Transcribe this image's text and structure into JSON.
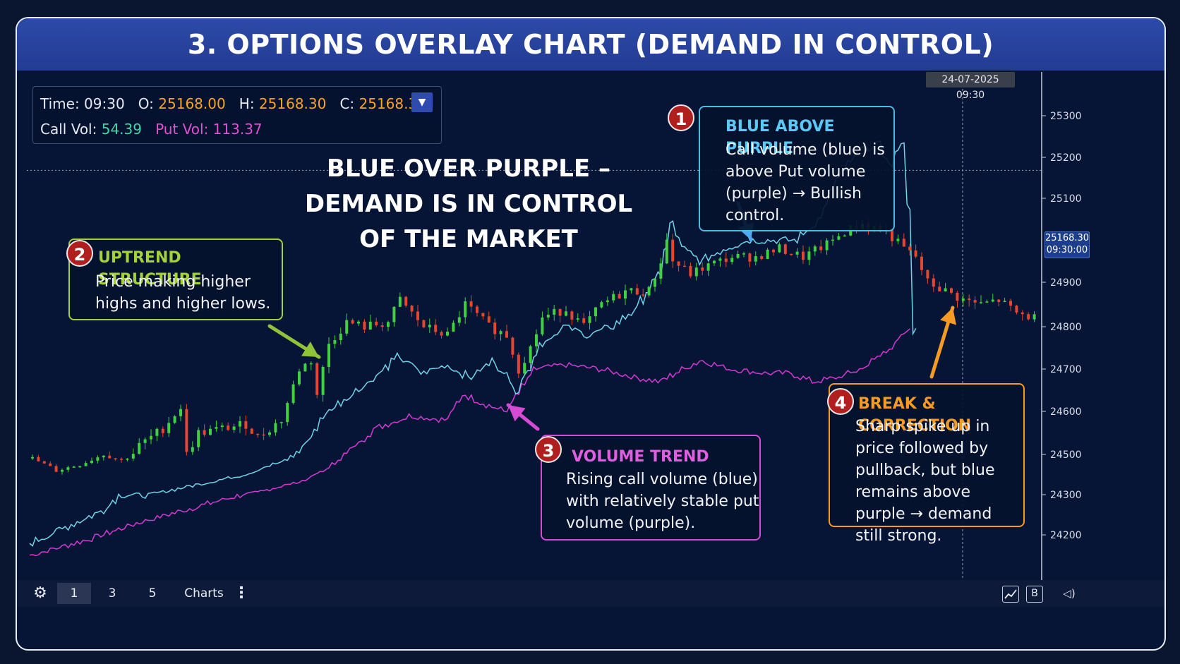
{
  "title": "3. OPTIONS OVERLAY CHART (DEMAND IN CONTROL)",
  "ohlc": {
    "time_label": "Time:",
    "time": "09:30",
    "o_label": "O:",
    "o": "25168.00",
    "h_label": "H:",
    "h": "25168.30",
    "c_label": "C:",
    "c": "25168.30",
    "call_label": "Call Vol:",
    "call": "54.39",
    "put_label": "Put Vol:",
    "put": "113.37"
  },
  "headline": "BLUE OVER PURPLE – DEMAND IS IN CONTROL OF THE MARKET",
  "timestamp": "24-07-2025 09:30",
  "price_tag": {
    "price": "25168.30",
    "time": "09:30:00"
  },
  "callouts": [
    {
      "num": "1",
      "title": "BLUE ABOVE PURPLE",
      "text": "Call volume (blue) is above Put volume (purple) → Bullish control."
    },
    {
      "num": "2",
      "title": "UPTREND STRUCTURE",
      "text": "Price making higher highs and higher lows."
    },
    {
      "num": "3",
      "title": "VOLUME TREND",
      "text": "Rising call volume (blue) with relatively stable put volume (purple)."
    },
    {
      "num": "4",
      "title": "BREAK & CORRECTION",
      "text": "Sharp spike up in price followed by pullback, but blue remains above purple → demand still strong."
    }
  ],
  "toolbar": {
    "i1": "1",
    "i3": "3",
    "i5": "5",
    "charts": "Charts",
    "more": "⋮",
    "b": "B",
    "gear": "⚙",
    "sound": "◁)"
  },
  "colors": {
    "banner": "#2c4aa8",
    "call": "#6fd4e8",
    "put": "#d23ad2",
    "up": "#3fd13f",
    "down": "#e8452e"
  },
  "chart_data": {
    "type": "line",
    "y_ticks": [
      25300,
      25200,
      25100,
      24900,
      24800,
      24700,
      24600,
      24500,
      24300,
      24200
    ],
    "price_anchors": [
      [
        0,
        24480
      ],
      [
        4,
        24420
      ],
      [
        8,
        24450
      ],
      [
        12,
        24500
      ],
      [
        15,
        24470
      ],
      [
        18,
        24520
      ],
      [
        22,
        24560
      ],
      [
        25,
        24610
      ],
      [
        26,
        24500
      ],
      [
        28,
        24550
      ],
      [
        32,
        24560
      ],
      [
        36,
        24570
      ],
      [
        38,
        24540
      ],
      [
        42,
        24580
      ],
      [
        45,
        24700
      ],
      [
        47,
        24720
      ],
      [
        48,
        24640
      ],
      [
        50,
        24760
      ],
      [
        53,
        24810
      ],
      [
        56,
        24800
      ],
      [
        60,
        24810
      ],
      [
        62,
        24860
      ],
      [
        66,
        24800
      ],
      [
        70,
        24780
      ],
      [
        73,
        24850
      ],
      [
        77,
        24800
      ],
      [
        80,
        24780
      ],
      [
        82,
        24700
      ],
      [
        84,
        24750
      ],
      [
        86,
        24820
      ],
      [
        90,
        24840
      ],
      [
        93,
        24800
      ],
      [
        96,
        24850
      ],
      [
        100,
        24880
      ],
      [
        104,
        24880
      ],
      [
        106,
        24950
      ],
      [
        107,
        25000
      ],
      [
        108,
        24950
      ],
      [
        111,
        24920
      ],
      [
        114,
        24940
      ],
      [
        118,
        24960
      ],
      [
        122,
        24960
      ],
      [
        126,
        24980
      ],
      [
        130,
        24960
      ],
      [
        134,
        24990
      ],
      [
        137,
        25020
      ],
      [
        140,
        25040
      ],
      [
        144,
        25020
      ],
      [
        147,
        24980
      ],
      [
        149,
        24960
      ],
      [
        151,
        24900
      ],
      [
        154,
        24880
      ],
      [
        157,
        24860
      ],
      [
        160,
        24850
      ],
      [
        163,
        24860
      ],
      [
        166,
        24830
      ],
      [
        169,
        24820
      ]
    ],
    "call_anchors": [
      [
        0,
        24180
      ],
      [
        6,
        24220
      ],
      [
        12,
        24260
      ],
      [
        15,
        24300
      ],
      [
        20,
        24300
      ],
      [
        28,
        24350
      ],
      [
        36,
        24400
      ],
      [
        42,
        24460
      ],
      [
        46,
        24520
      ],
      [
        50,
        24600
      ],
      [
        54,
        24640
      ],
      [
        58,
        24680
      ],
      [
        62,
        24730
      ],
      [
        66,
        24690
      ],
      [
        70,
        24710
      ],
      [
        74,
        24680
      ],
      [
        78,
        24720
      ],
      [
        82,
        24650
      ],
      [
        86,
        24760
      ],
      [
        90,
        24800
      ],
      [
        94,
        24780
      ],
      [
        98,
        24800
      ],
      [
        102,
        24840
      ],
      [
        106,
        24920
      ],
      [
        108,
        25040
      ],
      [
        110,
        24980
      ],
      [
        113,
        24950
      ],
      [
        117,
        24980
      ],
      [
        121,
        25000
      ],
      [
        125,
        25000
      ],
      [
        129,
        25000
      ],
      [
        133,
        25050
      ],
      [
        136,
        25150
      ],
      [
        140,
        25220
      ],
      [
        143,
        25230
      ],
      [
        145,
        25180
      ],
      [
        147,
        25240
      ],
      [
        148,
        25080
      ],
      [
        149,
        24790
      ]
    ],
    "put_anchors": [
      [
        0,
        24150
      ],
      [
        10,
        24190
      ],
      [
        18,
        24230
      ],
      [
        28,
        24270
      ],
      [
        38,
        24310
      ],
      [
        46,
        24370
      ],
      [
        50,
        24430
      ],
      [
        53,
        24500
      ],
      [
        58,
        24560
      ],
      [
        64,
        24590
      ],
      [
        70,
        24580
      ],
      [
        73,
        24640
      ],
      [
        76,
        24620
      ],
      [
        80,
        24600
      ],
      [
        85,
        24700
      ],
      [
        90,
        24710
      ],
      [
        96,
        24700
      ],
      [
        102,
        24680
      ],
      [
        106,
        24670
      ],
      [
        110,
        24700
      ],
      [
        113,
        24720
      ],
      [
        118,
        24700
      ],
      [
        124,
        24690
      ],
      [
        128,
        24690
      ],
      [
        132,
        24670
      ],
      [
        136,
        24680
      ],
      [
        140,
        24700
      ],
      [
        144,
        24740
      ],
      [
        148,
        24790
      ]
    ]
  }
}
